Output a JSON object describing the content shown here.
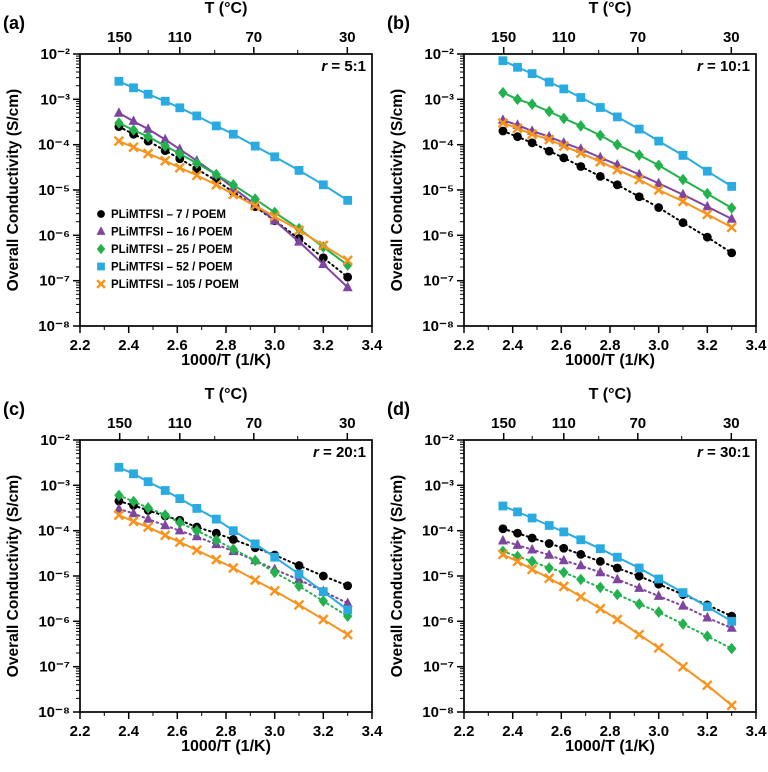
{
  "legend": {
    "location": "panel-a lower-left",
    "items": [
      {
        "label": "PLiMTFSI – 7 / POEM",
        "color": "#000000",
        "marker": "circle"
      },
      {
        "label": "PLiMTFSI – 16 / POEM",
        "color": "#7e44a0",
        "marker": "triangle"
      },
      {
        "label": "PLiMTFSI – 25 / POEM",
        "color": "#22b14c",
        "marker": "diamond"
      },
      {
        "label": "PLiMTFSI – 52 / POEM",
        "color": "#29abe2",
        "marker": "square"
      },
      {
        "label": "PLiMTFSI – 105 / POEM",
        "color": "#f7941e",
        "marker": "x"
      }
    ]
  },
  "chart_data": [
    {
      "type": "line",
      "panel_label": "(a)",
      "annotation_var": "r",
      "annotation_rest": " = 5:1",
      "title_top": "T (°C)",
      "xlabel": "1000/T (1/K)",
      "ylabel": "Overall Conductivity (S/cm)",
      "xlim": [
        2.2,
        3.4
      ],
      "ylog_lim": [
        -8,
        -2
      ],
      "x_ticks": [
        2.2,
        2.4,
        2.6,
        2.8,
        3.0,
        3.2,
        3.4
      ],
      "top_ticks_T": [
        150,
        110,
        70,
        30
      ],
      "top_minor_T": [
        130,
        90,
        50
      ],
      "show_legend": true,
      "x": [
        2.36,
        2.42,
        2.48,
        2.55,
        2.61,
        2.68,
        2.76,
        2.83,
        2.92,
        3.0,
        3.1,
        3.2,
        3.3
      ],
      "series": [
        {
          "name": "PLiMTFSI – 7 / POEM",
          "color": "#000000",
          "marker": "circle",
          "line": "dotted",
          "values": [
            0.00025,
            0.00017,
            0.00012,
            7.4e-05,
            4.9e-05,
            2.9e-05,
            1.6e-05,
            9.1e-06,
            4.3e-06,
            2.1e-06,
            8.5e-07,
            3.2e-07,
            1.2e-07
          ]
        },
        {
          "name": "PLiMTFSI – 16 / POEM",
          "color": "#7e44a0",
          "marker": "triangle",
          "line": "solid",
          "values": [
            0.0005,
            0.00033,
            0.00022,
            0.00013,
            7.9e-05,
            4.4e-05,
            2.2e-05,
            1.1e-05,
            4.8e-06,
            2.1e-06,
            7.2e-07,
            2.3e-07,
            7.1e-08
          ]
        },
        {
          "name": "PLiMTFSI – 25 / POEM",
          "color": "#22b14c",
          "marker": "diamond",
          "line": "solid",
          "values": [
            0.0003,
            0.00021,
            0.00015,
            9.4e-05,
            6.3e-05,
            3.9e-05,
            2.2e-05,
            1.3e-05,
            6.3e-06,
            3.2e-06,
            1.4e-06,
            5.5e-07,
            2.2e-07
          ]
        },
        {
          "name": "PLiMTFSI – 52 / POEM",
          "color": "#29abe2",
          "marker": "square",
          "line": "solid",
          "values": [
            0.0025,
            0.0018,
            0.0013,
            0.00091,
            0.00065,
            0.00043,
            0.00026,
            0.00017,
            9.3e-05,
            5.4e-05,
            2.7e-05,
            1.3e-05,
            5.9e-06
          ]
        },
        {
          "name": "PLiMTFSI – 105 / POEM",
          "color": "#f7941e",
          "marker": "x",
          "line": "solid",
          "values": [
            0.00012,
            8.8e-05,
            6.4e-05,
            4.4e-05,
            3.1e-05,
            2.1e-05,
            1.3e-05,
            8e-06,
            4.5e-06,
            2.6e-06,
            1.3e-06,
            6e-07,
            2.8e-07
          ]
        }
      ]
    },
    {
      "type": "line",
      "panel_label": "(b)",
      "annotation_var": "r",
      "annotation_rest": " = 10:1",
      "title_top": "T (°C)",
      "xlabel": "1000/T (1/K)",
      "ylabel": "Overall Conductivity (S/cm)",
      "xlim": [
        2.2,
        3.4
      ],
      "ylog_lim": [
        -8,
        -2
      ],
      "x_ticks": [
        2.2,
        2.4,
        2.6,
        2.8,
        3.0,
        3.2,
        3.4
      ],
      "top_ticks_T": [
        150,
        110,
        70,
        30
      ],
      "top_minor_T": [
        130,
        90,
        50
      ],
      "show_legend": false,
      "x": [
        2.36,
        2.42,
        2.48,
        2.55,
        2.61,
        2.68,
        2.76,
        2.83,
        2.92,
        3.0,
        3.1,
        3.2,
        3.3
      ],
      "series": [
        {
          "name": "PLiMTFSI – 7 / POEM",
          "color": "#000000",
          "marker": "circle",
          "line": "dotted",
          "values": [
            0.0002,
            0.00015,
            0.00011,
            7.2e-05,
            5.1e-05,
            3.3e-05,
            2e-05,
            1.3e-05,
            7.1e-06,
            4.1e-06,
            1.9e-06,
            9.1e-07,
            4.1e-07
          ]
        },
        {
          "name": "PLiMTFSI – 16 / POEM",
          "color": "#7e44a0",
          "marker": "triangle",
          "line": "solid",
          "values": [
            0.00035,
            0.00027,
            0.0002,
            0.00015,
            0.00011,
            8e-05,
            5.2e-05,
            3.6e-05,
            2.2e-05,
            1.4e-05,
            7.9e-06,
            4.3e-06,
            2.3e-06
          ]
        },
        {
          "name": "PLiMTFSI – 25 / POEM",
          "color": "#22b14c",
          "marker": "diamond",
          "line": "solid",
          "values": [
            0.0014,
            0.001,
            0.00078,
            0.00054,
            0.00038,
            0.00026,
            0.00016,
            0.0001,
            5.9e-05,
            3.5e-05,
            1.7e-05,
            8.3e-06,
            4e-06
          ]
        },
        {
          "name": "PLiMTFSI – 52 / POEM",
          "color": "#29abe2",
          "marker": "square",
          "line": "solid",
          "values": [
            0.0071,
            0.0051,
            0.0037,
            0.0024,
            0.0017,
            0.0011,
            0.00066,
            0.00041,
            0.00022,
            0.00012,
            5.8e-05,
            2.6e-05,
            1.2e-05
          ]
        },
        {
          "name": "PLiMTFSI – 105 / POEM",
          "color": "#f7941e",
          "marker": "x",
          "line": "solid",
          "values": [
            0.0003,
            0.00023,
            0.00017,
            0.00013,
            9.3e-05,
            6.5e-05,
            4.2e-05,
            2.8e-05,
            1.7e-05,
            1e-05,
            5.6e-06,
            2.9e-06,
            1.5e-06
          ]
        }
      ]
    },
    {
      "type": "line",
      "panel_label": "(c)",
      "annotation_var": "r",
      "annotation_rest": " = 20:1",
      "title_top": "T (°C)",
      "xlabel": "1000/T (1/K)",
      "ylabel": "Overall Conductivity (S/cm)",
      "xlim": [
        2.2,
        3.4
      ],
      "ylog_lim": [
        -8,
        -2
      ],
      "x_ticks": [
        2.2,
        2.4,
        2.6,
        2.8,
        3.0,
        3.2,
        3.4
      ],
      "top_ticks_T": [
        150,
        110,
        70,
        30
      ],
      "top_minor_T": [
        130,
        90,
        50
      ],
      "show_legend": false,
      "x": [
        2.36,
        2.42,
        2.48,
        2.55,
        2.61,
        2.68,
        2.76,
        2.83,
        2.92,
        3.0,
        3.1,
        3.2,
        3.3
      ],
      "series": [
        {
          "name": "PLiMTFSI – 7 / POEM",
          "color": "#000000",
          "marker": "circle",
          "line": "dotted",
          "values": [
            0.00045,
            0.00036,
            0.00028,
            0.00021,
            0.00017,
            0.00012,
            8.8e-05,
            6.4e-05,
            4.2e-05,
            2.9e-05,
            1.7e-05,
            1e-05,
            6.1e-06
          ]
        },
        {
          "name": "PLiMTFSI – 16 / POEM",
          "color": "#7e44a0",
          "marker": "triangle",
          "line": "dotted",
          "values": [
            0.0003,
            0.00024,
            0.00018,
            0.00013,
            0.0001,
            7.4e-05,
            5e-05,
            3.5e-05,
            2.2e-05,
            1.4e-05,
            8.3e-06,
            4.6e-06,
            2.5e-06
          ]
        },
        {
          "name": "PLiMTFSI – 25 / POEM",
          "color": "#22b14c",
          "marker": "diamond",
          "line": "dotted",
          "values": [
            0.0006,
            0.00044,
            0.00032,
            0.00022,
            0.00015,
            0.0001,
            6.2e-05,
            3.9e-05,
            2.2e-05,
            1.2e-05,
            6e-06,
            2.8e-06,
            1.3e-06
          ]
        },
        {
          "name": "PLiMTFSI – 52 / POEM",
          "color": "#29abe2",
          "marker": "square",
          "line": "solid",
          "values": [
            0.0025,
            0.0018,
            0.0012,
            0.00077,
            0.00051,
            0.00031,
            0.00018,
            0.0001,
            5.1e-05,
            2.6e-05,
            1.1e-05,
            4.5e-06,
            1.8e-06
          ]
        },
        {
          "name": "PLiMTFSI – 105 / POEM",
          "color": "#f7941e",
          "marker": "x",
          "line": "solid",
          "values": [
            0.00022,
            0.00016,
            0.00012,
            7.9e-05,
            5.6e-05,
            3.7e-05,
            2.3e-05,
            1.5e-05,
            8.1e-06,
            4.7e-06,
            2.3e-06,
            1.1e-06,
            5.1e-07
          ]
        }
      ]
    },
    {
      "type": "line",
      "panel_label": "(d)",
      "annotation_var": "r",
      "annotation_rest": " = 30:1",
      "title_top": "T (°C)",
      "xlabel": "1000/T (1/K)",
      "ylabel": "Overall Conductivity (S/cm)",
      "xlim": [
        2.2,
        3.4
      ],
      "ylog_lim": [
        -8,
        -2
      ],
      "x_ticks": [
        2.2,
        2.4,
        2.6,
        2.8,
        3.0,
        3.2,
        3.4
      ],
      "top_ticks_T": [
        150,
        110,
        70,
        30
      ],
      "top_minor_T": [
        130,
        90,
        50
      ],
      "show_legend": false,
      "x": [
        2.36,
        2.42,
        2.48,
        2.55,
        2.61,
        2.68,
        2.76,
        2.83,
        2.92,
        3.0,
        3.1,
        3.2,
        3.3
      ],
      "series": [
        {
          "name": "PLiMTFSI – 7 / POEM",
          "color": "#000000",
          "marker": "circle",
          "line": "dotted",
          "values": [
            0.00011,
            8.8e-05,
            6.9e-05,
            5.2e-05,
            4.1e-05,
            3e-05,
            2.1e-05,
            1.5e-05,
            9.9e-06,
            6.6e-06,
            3.9e-06,
            2.3e-06,
            1.3e-06
          ]
        },
        {
          "name": "PLiMTFSI – 16 / POEM",
          "color": "#7e44a0",
          "marker": "triangle",
          "line": "dotted",
          "values": [
            6e-05,
            4.8e-05,
            3.8e-05,
            2.9e-05,
            2.2e-05,
            1.7e-05,
            1.2e-05,
            8.4e-06,
            5.4e-06,
            3.6e-06,
            2.2e-06,
            1.2e-06,
            7.1e-07
          ]
        },
        {
          "name": "PLiMTFSI – 25 / POEM",
          "color": "#22b14c",
          "marker": "diamond",
          "line": "dotted",
          "values": [
            3.5e-05,
            2.7e-05,
            2.1e-05,
            1.5e-05,
            1.2e-05,
            8.4e-06,
            5.6e-06,
            3.9e-06,
            2.4e-06,
            1.6e-06,
            8.7e-07,
            4.7e-07,
            2.5e-07
          ]
        },
        {
          "name": "PLiMTFSI – 52 / POEM",
          "color": "#29abe2",
          "marker": "square",
          "line": "solid",
          "values": [
            0.00035,
            0.00026,
            0.00019,
            0.00013,
            9.4e-05,
            6.3e-05,
            4e-05,
            2.6e-05,
            1.5e-05,
            8.6e-06,
            4.3e-06,
            2.1e-06,
            1e-06
          ]
        },
        {
          "name": "PLiMTFSI – 105 / POEM",
          "color": "#f7941e",
          "marker": "x",
          "line": "solid",
          "values": [
            3e-05,
            2.1e-05,
            1.4e-05,
            8.9e-06,
            5.9e-06,
            3.5e-06,
            1.9e-06,
            1.1e-06,
            5.1e-07,
            2.6e-07,
            1e-07,
            3.9e-08,
            1.4e-08
          ]
        }
      ]
    }
  ]
}
